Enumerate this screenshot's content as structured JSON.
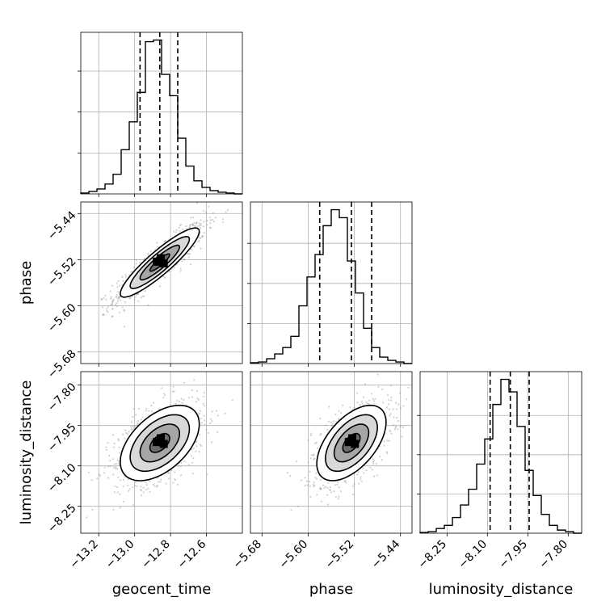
{
  "chart_data": {
    "type": "corner",
    "parameters": [
      "geocent_time",
      "phase",
      "luminosity_distance"
    ],
    "axis_labels": {
      "x": [
        "geocent_time",
        "phase",
        "luminosity_distance"
      ],
      "y": [
        "phase",
        "luminosity_distance"
      ]
    },
    "ranges": {
      "geocent_time": [
        -13.3,
        -12.4
      ],
      "phase": [
        -5.7,
        -5.42
      ],
      "luminosity_distance": [
        -8.35,
        -7.75
      ]
    },
    "ticks": {
      "geocent_time": [
        -13.2,
        -13.0,
        -12.8,
        -12.6
      ],
      "phase": [
        -5.68,
        -5.6,
        -5.52,
        -5.44
      ],
      "luminosity_distance": [
        -8.25,
        -8.1,
        -7.95,
        -7.8
      ]
    },
    "tick_labels": {
      "geocent_time": [
        "−13.2",
        "−13.0",
        "−12.8",
        "−12.6"
      ],
      "phase": [
        "−5.68",
        "−5.60",
        "−5.52",
        "−5.44"
      ],
      "luminosity_distance": [
        "−8.25",
        "−8.10",
        "−7.95",
        "−7.80"
      ]
    },
    "histograms": [
      {
        "parameter": "geocent_time",
        "quantiles": [
          -12.97,
          -12.86,
          -12.76
        ],
        "bin_edges": [
          -13.3,
          -13.255,
          -13.21,
          -13.165,
          -13.12,
          -13.075,
          -13.03,
          -12.985,
          -12.94,
          -12.895,
          -12.85,
          -12.805,
          -12.76,
          -12.715,
          -12.67,
          -12.625,
          -12.58,
          -12.535,
          -12.49,
          -12.445,
          -12.4
        ],
        "counts": [
          0.5,
          1.5,
          3,
          6,
          12,
          27,
          44,
          62,
          93,
          94,
          73,
          60,
          34,
          17,
          8,
          4,
          2,
          1,
          0.5,
          0
        ]
      },
      {
        "parameter": "phase",
        "quantiles": [
          -5.58,
          -5.525,
          -5.49
        ],
        "bin_edges": [
          -5.7,
          -5.686,
          -5.672,
          -5.658,
          -5.644,
          -5.63,
          -5.616,
          -5.602,
          -5.588,
          -5.574,
          -5.56,
          -5.546,
          -5.532,
          -5.518,
          -5.504,
          -5.49,
          -5.476,
          -5.462,
          -5.448,
          -5.434,
          -5.42
        ],
        "counts": [
          0.5,
          1,
          3,
          6,
          10,
          17,
          36,
          54,
          68,
          86,
          96,
          91,
          64,
          44,
          22,
          10,
          4,
          2,
          1,
          0
        ]
      },
      {
        "parameter": "luminosity_distance",
        "quantiles": [
          -8.09,
          -8.015,
          -7.945
        ],
        "bin_edges": [
          -8.35,
          -8.32,
          -8.29,
          -8.26,
          -8.23,
          -8.2,
          -8.17,
          -8.14,
          -8.11,
          -8.08,
          -8.05,
          -8.02,
          -7.99,
          -7.96,
          -7.93,
          -7.9,
          -7.87,
          -7.84,
          -7.81,
          -7.78,
          -7.75
        ],
        "counts": [
          0.5,
          1,
          3,
          5,
          10,
          18,
          28,
          44,
          60,
          82,
          98,
          90,
          68,
          40,
          24,
          12,
          5,
          2,
          1,
          0
        ]
      }
    ],
    "joint": [
      {
        "x": "geocent_time",
        "y": "phase",
        "center": [
          -12.86,
          -5.525
        ],
        "std": [
          0.11,
          0.03
        ],
        "corr": 0.9,
        "contour_levels": [
          0.5,
          1.0,
          1.5,
          2.0
        ]
      },
      {
        "x": "geocent_time",
        "y": "luminosity_distance",
        "center": [
          -12.86,
          -8.015
        ],
        "std": [
          0.11,
          0.07
        ],
        "corr": 0.5,
        "contour_levels": [
          0.5,
          1.0,
          1.5,
          2.0
        ]
      },
      {
        "x": "phase",
        "y": "luminosity_distance",
        "center": [
          -5.525,
          -8.015
        ],
        "std": [
          0.03,
          0.07
        ],
        "corr": 0.55,
        "contour_levels": [
          0.5,
          1.0,
          1.5,
          2.0
        ]
      }
    ],
    "grid": true
  }
}
